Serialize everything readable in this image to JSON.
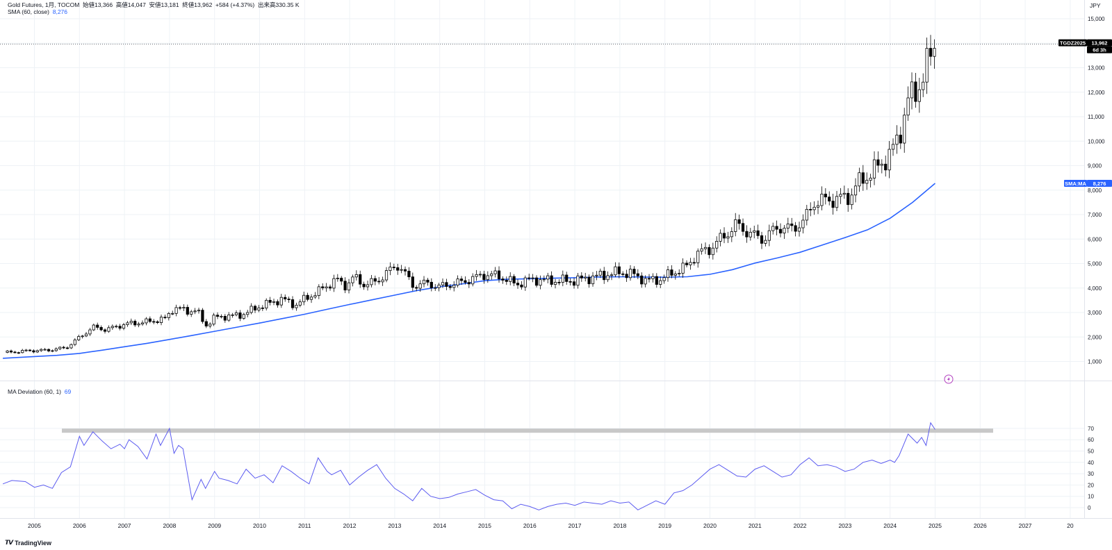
{
  "header": {
    "symbol": "Gold Futures, 1月, TOCOM",
    "open_label": "始値",
    "open": "13,366",
    "high_label": "高値",
    "high": "14,047",
    "low_label": "安値",
    "low": "13,181",
    "close_label": "終値",
    "close": "13,962",
    "change": "+584 (+4.37%)",
    "volume_label": "出来高",
    "volume": "330.35 K"
  },
  "sma_legend": {
    "name": "SMA (60, close)",
    "value": "8,276"
  },
  "deviation_legend": {
    "name": "MA Deviation (60, 1)",
    "value": "69"
  },
  "currency": "JPY",
  "brand": "TradingView",
  "price_tag": {
    "symbol": "TGDZ2025",
    "price": "13,962",
    "countdown": "6d 3h"
  },
  "sma_tag": {
    "label": "SMA:MA",
    "value": "8,276"
  },
  "colors": {
    "sma": "#2962ff",
    "deviation": "#5b5bf0",
    "band": "#c8c8c8",
    "candle": "#000000",
    "grid": "#eef2f6",
    "badge": "#b13fbf"
  },
  "chart_data": [
    {
      "type": "candlestick",
      "title": "Gold Futures, 1月, TOCOM",
      "xlabel": "",
      "ylabel": "JPY",
      "x_ticks": [
        "2005",
        "2006",
        "2007",
        "2008",
        "2009",
        "2010",
        "2011",
        "2012",
        "2013",
        "2014",
        "2015",
        "2016",
        "2017",
        "2018",
        "2019",
        "2020",
        "2021",
        "2022",
        "2023",
        "2024",
        "2025",
        "2026",
        "2027",
        "20"
      ],
      "y_ticks": [
        "1,000",
        "2,000",
        "3,000",
        "4,000",
        "5,000",
        "6,000",
        "7,000",
        "8,000",
        "9,000",
        "10,000",
        "11,000",
        "12,000",
        "13,000",
        "14,000",
        "15,000"
      ],
      "ylim": [
        500,
        15500
      ],
      "grid": true,
      "close_anchors": [
        [
          2004.4,
          1370
        ],
        [
          2004.9,
          1440
        ],
        [
          2005.3,
          1460
        ],
        [
          2005.7,
          1560
        ],
        [
          2006.0,
          1980
        ],
        [
          2006.3,
          2400
        ],
        [
          2006.6,
          2300
        ],
        [
          2007.0,
          2520
        ],
        [
          2007.5,
          2620
        ],
        [
          2007.9,
          2740
        ],
        [
          2008.1,
          3200
        ],
        [
          2008.4,
          3050
        ],
        [
          2008.6,
          3100
        ],
        [
          2008.8,
          2450
        ],
        [
          2009.0,
          2800
        ],
        [
          2009.3,
          2850
        ],
        [
          2009.6,
          2900
        ],
        [
          2010.0,
          3250
        ],
        [
          2010.5,
          3550
        ],
        [
          2010.8,
          3300
        ],
        [
          2011.0,
          3550
        ],
        [
          2011.3,
          3850
        ],
        [
          2011.7,
          4350
        ],
        [
          2011.9,
          4100
        ],
        [
          2012.1,
          4450
        ],
        [
          2012.3,
          4150
        ],
        [
          2012.6,
          4250
        ],
        [
          2012.8,
          4600
        ],
        [
          2013.1,
          4950
        ],
        [
          2013.4,
          4100
        ],
        [
          2013.7,
          4200
        ],
        [
          2014.0,
          4050
        ],
        [
          2014.5,
          4250
        ],
        [
          2015.0,
          4550
        ],
        [
          2015.3,
          4500
        ],
        [
          2015.7,
          4150
        ],
        [
          2016.0,
          4350
        ],
        [
          2016.5,
          4300
        ],
        [
          2017.0,
          4300
        ],
        [
          2017.5,
          4480
        ],
        [
          2018.0,
          4650
        ],
        [
          2018.3,
          4550
        ],
        [
          2018.6,
          4300
        ],
        [
          2018.9,
          4350
        ],
        [
          2019.1,
          4550
        ],
        [
          2019.5,
          4900
        ],
        [
          2019.7,
          5400
        ],
        [
          2020.0,
          5600
        ],
        [
          2020.3,
          6100
        ],
        [
          2020.6,
          6600
        ],
        [
          2020.9,
          6200
        ],
        [
          2021.2,
          6000
        ],
        [
          2021.5,
          6500
        ],
        [
          2021.8,
          6400
        ],
        [
          2022.1,
          6750
        ],
        [
          2022.3,
          7500
        ],
        [
          2022.6,
          7600
        ],
        [
          2022.9,
          7650
        ],
        [
          2023.1,
          7750
        ],
        [
          2023.3,
          8300
        ],
        [
          2023.7,
          8900
        ],
        [
          2024.0,
          9450
        ],
        [
          2024.2,
          10200
        ],
        [
          2024.4,
          11700
        ],
        [
          2024.6,
          12050
        ],
        [
          2024.9,
          13500
        ],
        [
          2025.0,
          13962
        ]
      ]
    },
    {
      "type": "line",
      "name": "SMA (60, close)",
      "x": [
        2004.3,
        2005.0,
        2005.5,
        2006.0,
        2006.5,
        2007.0,
        2007.5,
        2008.0,
        2008.5,
        2009.0,
        2009.5,
        2010.0,
        2010.5,
        2011.0,
        2011.5,
        2012.0,
        2012.5,
        2013.0,
        2013.5,
        2014.0,
        2014.5,
        2015.0,
        2015.5,
        2016.0,
        2016.5,
        2017.0,
        2017.5,
        2018.0,
        2018.5,
        2019.0,
        2019.5,
        2020.0,
        2020.5,
        2021.0,
        2021.5,
        2022.0,
        2022.5,
        2023.0,
        2023.5,
        2024.0,
        2024.5,
        2025.0
      ],
      "values": [
        1130,
        1200,
        1250,
        1330,
        1460,
        1600,
        1740,
        1900,
        2060,
        2230,
        2400,
        2570,
        2750,
        2930,
        3130,
        3330,
        3520,
        3710,
        3900,
        4050,
        4170,
        4300,
        4360,
        4380,
        4400,
        4420,
        4450,
        4460,
        4450,
        4440,
        4460,
        4560,
        4750,
        5020,
        5230,
        5460,
        5760,
        6060,
        6380,
        6850,
        7500,
        8276
      ],
      "ylim": [
        500,
        15500
      ]
    },
    {
      "type": "line",
      "name": "MA Deviation (60, 1)",
      "y_ticks": [
        "0",
        "10",
        "20",
        "30",
        "40",
        "50",
        "60",
        "70"
      ],
      "ylim": [
        -7,
        77
      ],
      "band_value": 68,
      "x": [
        2004.3,
        2004.5,
        2004.8,
        2005.0,
        2005.2,
        2005.4,
        2005.6,
        2005.8,
        2006.0,
        2006.1,
        2006.3,
        2006.5,
        2006.7,
        2006.9,
        2007.0,
        2007.1,
        2007.3,
        2007.5,
        2007.7,
        2007.8,
        2008.0,
        2008.1,
        2008.2,
        2008.3,
        2008.5,
        2008.7,
        2008.8,
        2009.0,
        2009.1,
        2009.3,
        2009.5,
        2009.7,
        2009.9,
        2010.1,
        2010.3,
        2010.5,
        2010.7,
        2010.9,
        2011.1,
        2011.3,
        2011.5,
        2011.6,
        2011.8,
        2012.0,
        2012.2,
        2012.4,
        2012.6,
        2012.8,
        2013.0,
        2013.2,
        2013.4,
        2013.6,
        2013.8,
        2014.0,
        2014.2,
        2014.4,
        2014.6,
        2014.8,
        2015.0,
        2015.2,
        2015.4,
        2015.6,
        2015.8,
        2016.0,
        2016.2,
        2016.4,
        2016.6,
        2016.8,
        2017.0,
        2017.2,
        2017.4,
        2017.6,
        2017.8,
        2018.0,
        2018.2,
        2018.4,
        2018.6,
        2018.8,
        2019.0,
        2019.2,
        2019.4,
        2019.6,
        2019.8,
        2020.0,
        2020.2,
        2020.4,
        2020.6,
        2020.8,
        2021.0,
        2021.2,
        2021.4,
        2021.6,
        2021.8,
        2022.0,
        2022.2,
        2022.4,
        2022.6,
        2022.8,
        2023.0,
        2023.2,
        2023.4,
        2023.6,
        2023.8,
        2024.0,
        2024.1,
        2024.2,
        2024.4,
        2024.5,
        2024.6,
        2024.7,
        2024.8,
        2024.9,
        2025.0
      ],
      "values": [
        21,
        24,
        23,
        18,
        20,
        17,
        31,
        36,
        63,
        55,
        67,
        59,
        52,
        56,
        52,
        60,
        54,
        43,
        65,
        55,
        70,
        48,
        55,
        52,
        7,
        25,
        17,
        32,
        26,
        24,
        21,
        34,
        26,
        29,
        22,
        37,
        32,
        26,
        21,
        44,
        32,
        29,
        33,
        20,
        27,
        33,
        38,
        26,
        17,
        12,
        6,
        17,
        10,
        8,
        9,
        12,
        14,
        16,
        11,
        7,
        6,
        -1,
        3,
        1,
        -2,
        1,
        3,
        4,
        2,
        5,
        4,
        3,
        6,
        4,
        5,
        -2,
        2,
        6,
        3,
        13,
        15,
        20,
        27,
        34,
        38,
        33,
        28,
        27,
        34,
        37,
        32,
        27,
        29,
        38,
        44,
        37,
        38,
        36,
        32,
        34,
        40,
        42,
        39,
        42,
        40,
        46,
        65,
        61,
        57,
        62,
        55,
        75,
        69
      ],
      "xlim": [
        2004.3,
        2025.0
      ]
    }
  ]
}
